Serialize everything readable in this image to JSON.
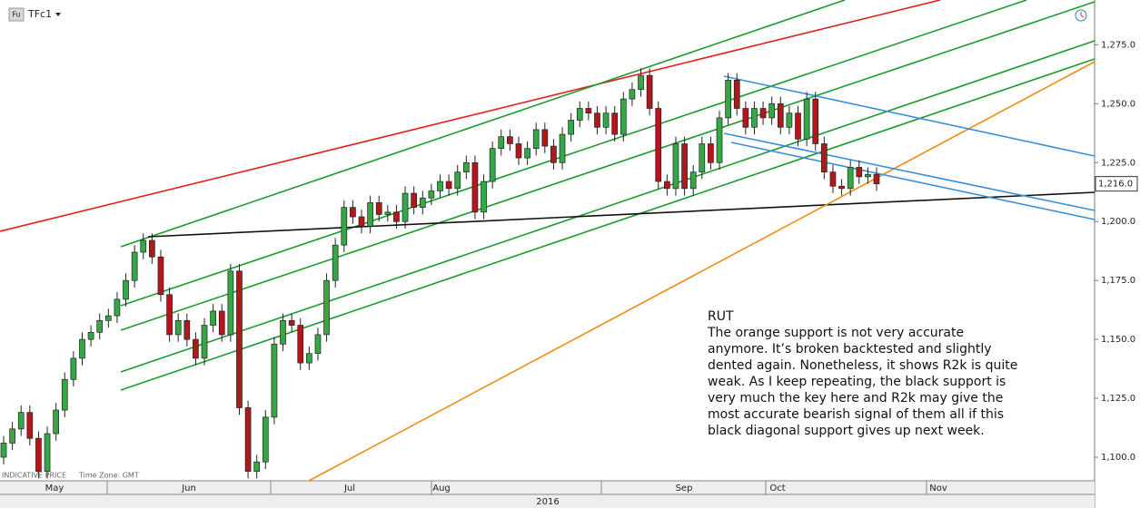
{
  "chart_data": {
    "type": "candlestick",
    "symbol": "TFc1",
    "badge": "Fu",
    "footer": [
      "INDICATIVE PRICE",
      "Time Zone: GMT"
    ],
    "up_color": "#35a845",
    "down_color": "#b3161b",
    "ylim": [
      1090,
      1294
    ],
    "yticks": [
      {
        "value": 1100,
        "label": "1,100.0"
      },
      {
        "value": 1125,
        "label": "1,125.0"
      },
      {
        "value": 1150,
        "label": "1,150.0"
      },
      {
        "value": 1175,
        "label": "1,175.0"
      },
      {
        "value": 1200,
        "label": "1,200.0"
      },
      {
        "value": 1225,
        "label": "1,225.0"
      },
      {
        "value": 1250,
        "label": "1,250.0"
      },
      {
        "value": 1275,
        "label": "1,275.0"
      }
    ],
    "last_price": {
      "value": 1216,
      "label": "1,216.0"
    },
    "months": [
      "May",
      "Jun",
      "Jul",
      "Aug",
      "Sep",
      "Oct",
      "Nov"
    ],
    "year": "2016",
    "annotation": {
      "title": "RUT",
      "lines": [
        "The orange support is not very accurate",
        "anymore. It’s broken backtested and slightly",
        "dented again. Nonetheless, it shows R2k is quite",
        "weak. As I keep repeating, the black support is",
        "very much the key here and R2k may give the",
        "most accurate bearish signal of them all if this",
        "black diagonal support gives up next week."
      ]
    },
    "candles": [
      [
        1100,
        1109,
        1097,
        1106
      ],
      [
        1106,
        1115,
        1103,
        1112
      ],
      [
        1112,
        1122,
        1109,
        1119
      ],
      [
        1119,
        1122,
        1105,
        1108
      ],
      [
        1108,
        1111,
        1091,
        1094
      ],
      [
        1094,
        1113,
        1091,
        1110
      ],
      [
        1110,
        1123,
        1107,
        1120
      ],
      [
        1120,
        1136,
        1117,
        1133
      ],
      [
        1133,
        1145,
        1130,
        1142
      ],
      [
        1142,
        1153,
        1139,
        1150
      ],
      [
        1150,
        1156,
        1147,
        1153
      ],
      [
        1153,
        1161,
        1150,
        1158
      ],
      [
        1158,
        1163,
        1155,
        1160
      ],
      [
        1160,
        1170,
        1157,
        1167
      ],
      [
        1167,
        1178,
        1164,
        1175
      ],
      [
        1175,
        1190,
        1172,
        1187
      ],
      [
        1187,
        1195,
        1184,
        1192
      ],
      [
        1192,
        1195,
        1182,
        1185
      ],
      [
        1185,
        1188,
        1166,
        1169
      ],
      [
        1169,
        1172,
        1149,
        1152
      ],
      [
        1152,
        1161,
        1149,
        1158
      ],
      [
        1158,
        1161,
        1147,
        1150
      ],
      [
        1150,
        1153,
        1139,
        1142
      ],
      [
        1142,
        1159,
        1139,
        1156
      ],
      [
        1156,
        1165,
        1153,
        1162
      ],
      [
        1162,
        1165,
        1149,
        1152
      ],
      [
        1152,
        1182,
        1149,
        1179
      ],
      [
        1179,
        1182,
        1118,
        1121
      ],
      [
        1121,
        1124,
        1091,
        1094
      ],
      [
        1094,
        1101,
        1091,
        1098
      ],
      [
        1098,
        1120,
        1095,
        1117
      ],
      [
        1117,
        1151,
        1114,
        1148
      ],
      [
        1148,
        1161,
        1145,
        1158
      ],
      [
        1158,
        1161,
        1153,
        1156
      ],
      [
        1156,
        1159,
        1137,
        1140
      ],
      [
        1140,
        1147,
        1137,
        1144
      ],
      [
        1144,
        1155,
        1141,
        1152
      ],
      [
        1152,
        1178,
        1149,
        1175
      ],
      [
        1175,
        1193,
        1172,
        1190
      ],
      [
        1190,
        1209,
        1187,
        1206
      ],
      [
        1206,
        1209,
        1199,
        1202
      ],
      [
        1202,
        1205,
        1195,
        1198
      ],
      [
        1198,
        1211,
        1195,
        1208
      ],
      [
        1208,
        1211,
        1200,
        1203
      ],
      [
        1203,
        1207,
        1200,
        1204
      ],
      [
        1204,
        1207,
        1197,
        1200
      ],
      [
        1200,
        1215,
        1197,
        1212
      ],
      [
        1212,
        1215,
        1203,
        1206
      ],
      [
        1206,
        1213,
        1203,
        1210
      ],
      [
        1210,
        1216,
        1207,
        1213
      ],
      [
        1213,
        1220,
        1210,
        1217
      ],
      [
        1217,
        1220,
        1211,
        1214
      ],
      [
        1214,
        1224,
        1211,
        1221
      ],
      [
        1221,
        1228,
        1218,
        1225
      ],
      [
        1225,
        1228,
        1201,
        1204
      ],
      [
        1204,
        1220,
        1201,
        1217
      ],
      [
        1217,
        1234,
        1214,
        1231
      ],
      [
        1231,
        1239,
        1228,
        1236
      ],
      [
        1236,
        1239,
        1230,
        1233
      ],
      [
        1233,
        1236,
        1224,
        1227
      ],
      [
        1227,
        1234,
        1224,
        1231
      ],
      [
        1231,
        1242,
        1228,
        1239
      ],
      [
        1239,
        1242,
        1229,
        1232
      ],
      [
        1232,
        1235,
        1222,
        1225
      ],
      [
        1225,
        1240,
        1222,
        1237
      ],
      [
        1237,
        1246,
        1234,
        1243
      ],
      [
        1243,
        1251,
        1240,
        1248
      ],
      [
        1248,
        1251,
        1243,
        1246
      ],
      [
        1246,
        1249,
        1237,
        1240
      ],
      [
        1240,
        1249,
        1237,
        1246
      ],
      [
        1246,
        1249,
        1234,
        1237
      ],
      [
        1237,
        1255,
        1234,
        1252
      ],
      [
        1252,
        1259,
        1249,
        1256
      ],
      [
        1256,
        1265,
        1253,
        1262
      ],
      [
        1262,
        1265,
        1245,
        1248
      ],
      [
        1248,
        1251,
        1214,
        1217
      ],
      [
        1217,
        1220,
        1211,
        1214
      ],
      [
        1214,
        1236,
        1211,
        1233
      ],
      [
        1233,
        1236,
        1211,
        1214
      ],
      [
        1214,
        1224,
        1211,
        1221
      ],
      [
        1221,
        1236,
        1218,
        1233
      ],
      [
        1233,
        1236,
        1222,
        1225
      ],
      [
        1225,
        1247,
        1222,
        1244
      ],
      [
        1244,
        1263,
        1241,
        1260
      ],
      [
        1260,
        1263,
        1245,
        1248
      ],
      [
        1248,
        1251,
        1237,
        1240
      ],
      [
        1240,
        1251,
        1237,
        1248
      ],
      [
        1248,
        1251,
        1241,
        1244
      ],
      [
        1244,
        1253,
        1241,
        1250
      ],
      [
        1250,
        1253,
        1237,
        1240
      ],
      [
        1240,
        1249,
        1237,
        1246
      ],
      [
        1246,
        1249,
        1232,
        1235
      ],
      [
        1235,
        1255,
        1232,
        1252
      ],
      [
        1252,
        1255,
        1230,
        1233
      ],
      [
        1233,
        1236,
        1218,
        1221
      ],
      [
        1221,
        1224,
        1212,
        1215
      ],
      [
        1215,
        1218,
        1211,
        1214
      ],
      [
        1214,
        1226,
        1211,
        1223
      ],
      [
        1223,
        1226,
        1216,
        1219
      ],
      [
        1219,
        1223,
        1216,
        1220
      ],
      [
        1220,
        1223,
        1213,
        1216
      ]
    ]
  }
}
